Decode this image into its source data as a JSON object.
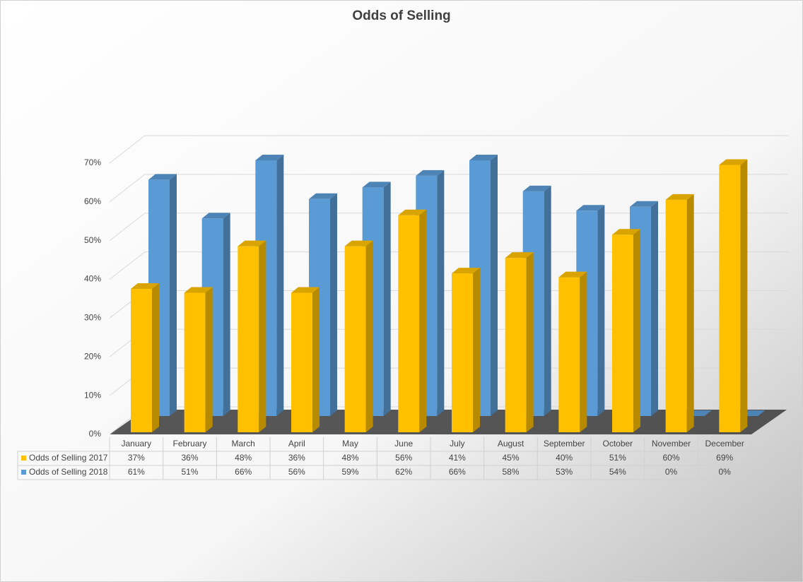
{
  "chart_data": {
    "type": "bar3d",
    "title": "Odds of Selling",
    "categories": [
      "January",
      "February",
      "March",
      "April",
      "May",
      "June",
      "July",
      "August",
      "September",
      "October",
      "November",
      "December"
    ],
    "series": [
      {
        "name": "Odds of Selling 2017",
        "color": "#ffc000",
        "values": [
          37,
          36,
          48,
          36,
          48,
          56,
          41,
          45,
          40,
          51,
          60,
          69
        ],
        "value_labels": [
          "37%",
          "36%",
          "48%",
          "36%",
          "48%",
          "56%",
          "41%",
          "45%",
          "40%",
          "51%",
          "60%",
          "69%"
        ]
      },
      {
        "name": "Odds of Selling 2018",
        "color": "#5b9bd5",
        "values": [
          61,
          51,
          66,
          56,
          59,
          62,
          66,
          58,
          53,
          54,
          0,
          0
        ],
        "value_labels": [
          "61%",
          "51%",
          "66%",
          "56%",
          "59%",
          "62%",
          "66%",
          "58%",
          "53%",
          "54%",
          "0%",
          "0%"
        ]
      }
    ],
    "ylim": [
      0,
      70
    ],
    "yticks": [
      {
        "value": 0,
        "label": "0%"
      },
      {
        "value": 10,
        "label": "10%"
      },
      {
        "value": 20,
        "label": "20%"
      },
      {
        "value": 30,
        "label": "30%"
      },
      {
        "value": 40,
        "label": "40%"
      },
      {
        "value": 50,
        "label": "50%"
      },
      {
        "value": 60,
        "label": "60%"
      },
      {
        "value": 70,
        "label": "70%"
      }
    ],
    "grid": true
  }
}
